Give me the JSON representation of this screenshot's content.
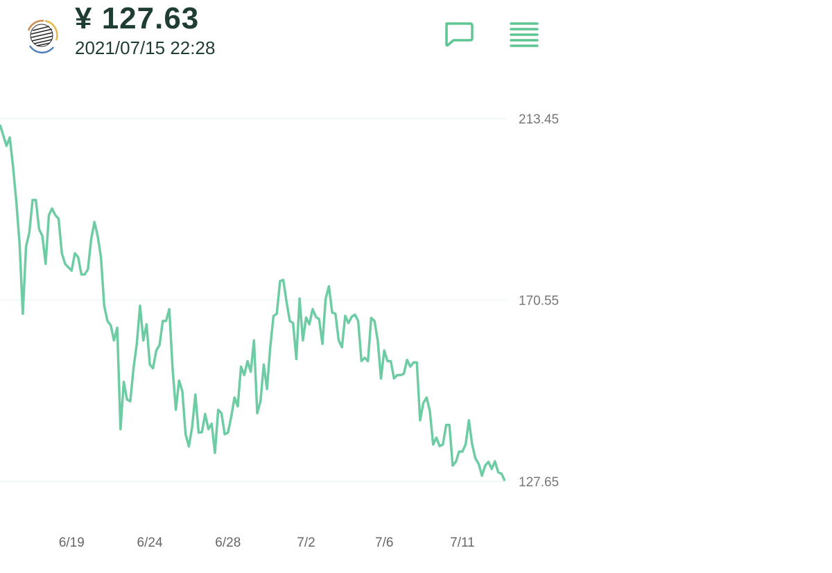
{
  "header": {
    "price": "¥ 127.63",
    "timestamp": "2021/07/15 22:28",
    "icons": {
      "logo": "globe-logo-icon",
      "chat": "chat-bubble-icon",
      "menu": "menu-lines-icon"
    }
  },
  "colors": {
    "line": "#6dcca3",
    "grid": "#eaf4f4",
    "accent": "#5ec593",
    "text": "#1f3d33"
  },
  "chart_data": {
    "type": "line",
    "title": "",
    "xlabel": "",
    "ylabel": "",
    "ylim": [
      127.65,
      213.45
    ],
    "y_ticks": [
      "213.45",
      "170.55",
      "127.65"
    ],
    "y_tick_values": [
      213.45,
      170.55,
      127.65
    ],
    "x_ticks": [
      {
        "label": "6/19",
        "index": 22
      },
      {
        "label": "6/24",
        "index": 46
      },
      {
        "label": "6/28",
        "index": 70
      },
      {
        "label": "7/2",
        "index": 94
      },
      {
        "label": "7/6",
        "index": 118
      },
      {
        "label": "7/11",
        "index": 142
      }
    ],
    "grid": true,
    "values": [
      212.0,
      209.5,
      207.0,
      209.0,
      202.1,
      193.9,
      184.0,
      167.3,
      183.2,
      186.5,
      194.2,
      194.2,
      187.3,
      185.7,
      179.1,
      190.6,
      192.2,
      190.6,
      189.8,
      181.6,
      179.1,
      178.3,
      177.5,
      181.6,
      180.7,
      176.6,
      176.6,
      177.8,
      184.9,
      189.0,
      185.7,
      180.7,
      169.2,
      165.6,
      164.6,
      161.0,
      164.0,
      140.0,
      151.2,
      147.0,
      146.6,
      154.4,
      160.2,
      169.2,
      161.0,
      164.8,
      155.3,
      154.4,
      158.6,
      159.9,
      165.6,
      165.6,
      168.4,
      154.4,
      144.6,
      151.5,
      149.0,
      138.8,
      135.9,
      140.5,
      148.2,
      139.2,
      139.3,
      143.6,
      140.0,
      141.3,
      134.4,
      144.6,
      143.8,
      138.8,
      139.2,
      142.9,
      147.5,
      145.4,
      154.8,
      152.8,
      156.1,
      153.6,
      161.0,
      143.8,
      146.6,
      155.3,
      149.5,
      159.4,
      166.8,
      167.3,
      175.0,
      175.3,
      170.1,
      165.6,
      165.1,
      156.6,
      170.9,
      161.0,
      166.4,
      164.8,
      168.4,
      166.6,
      166.0,
      160.2,
      170.9,
      173.8,
      167.6,
      167.3,
      161.0,
      159.4,
      166.8,
      165.1,
      166.6,
      167.1,
      165.6,
      156.1,
      156.9,
      156.1,
      166.3,
      165.6,
      161.0,
      152.0,
      158.6,
      156.1,
      156.1,
      152.0,
      152.8,
      152.8,
      153.1,
      156.4,
      154.8,
      155.8,
      155.8,
      142.1,
      146.2,
      147.5,
      144.3,
      136.4,
      138.0,
      136.0,
      136.4,
      141.0,
      141.0,
      131.4,
      132.3,
      134.7,
      134.7,
      136.4,
      142.1,
      136.4,
      133.1,
      131.8,
      129.0,
      131.4,
      132.3,
      130.6,
      132.4,
      129.8,
      129.5,
      127.8
    ]
  }
}
